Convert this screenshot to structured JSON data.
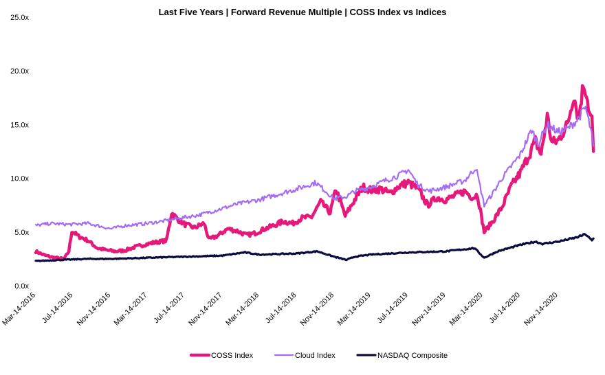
{
  "chart_data": {
    "type": "line",
    "title": "Last Five Years | Forward Revenue Multiple | COSS Index vs Indices",
    "xlabel": "",
    "ylabel": "",
    "ylim": [
      0,
      25
    ],
    "y_ticks": [
      "0.0x",
      "5.0x",
      "10.0x",
      "15.0x",
      "20.0x",
      "25.0x"
    ],
    "x_ticks": [
      "Mar-14-2016",
      "Jul-14-2016",
      "Nov-14-2016",
      "Mar-14-2017",
      "Jul-14-2017",
      "Nov-14-2017",
      "Mar-14-2018",
      "Jul-14-2018",
      "Nov-14-2018",
      "Mar-14-2019",
      "Jul-14-2019",
      "Nov-14-2019",
      "Mar-14-2020",
      "Jul-14-2020",
      "Nov-14-2020"
    ],
    "x_range": [
      "2016-03-14",
      "2021-03-14"
    ],
    "grid": false,
    "legend_position": "bottom",
    "series": [
      {
        "name": "COSS Index",
        "color": "#e5197a",
        "points": [
          [
            "2016-03-14",
            3.2
          ],
          [
            "2016-04-15",
            2.8
          ],
          [
            "2016-05-15",
            2.6
          ],
          [
            "2016-06-15",
            2.5
          ],
          [
            "2016-06-30",
            3.2
          ],
          [
            "2016-07-10",
            5.1
          ],
          [
            "2016-08-01",
            4.6
          ],
          [
            "2016-09-01",
            4.2
          ],
          [
            "2016-10-01",
            3.5
          ],
          [
            "2016-11-01",
            3.3
          ],
          [
            "2016-12-01",
            3.2
          ],
          [
            "2017-01-01",
            3.3
          ],
          [
            "2017-02-01",
            3.6
          ],
          [
            "2017-03-01",
            3.8
          ],
          [
            "2017-04-01",
            4.0
          ],
          [
            "2017-05-15",
            4.2
          ],
          [
            "2017-06-01",
            6.8
          ],
          [
            "2017-06-20",
            6.2
          ],
          [
            "2017-07-15",
            5.7
          ],
          [
            "2017-08-15",
            5.4
          ],
          [
            "2017-09-15",
            5.8
          ],
          [
            "2017-10-01",
            4.3
          ],
          [
            "2017-11-01",
            4.7
          ],
          [
            "2017-12-01",
            5.3
          ],
          [
            "2018-01-01",
            5.1
          ],
          [
            "2018-02-01",
            4.7
          ],
          [
            "2018-03-01",
            4.9
          ],
          [
            "2018-04-01",
            5.3
          ],
          [
            "2018-05-01",
            5.6
          ],
          [
            "2018-06-01",
            6.0
          ],
          [
            "2018-07-01",
            5.8
          ],
          [
            "2018-08-01",
            6.3
          ],
          [
            "2018-09-01",
            6.4
          ],
          [
            "2018-10-01",
            7.8
          ],
          [
            "2018-11-01",
            6.8
          ],
          [
            "2018-11-20",
            9.0
          ],
          [
            "2018-12-20",
            6.5
          ],
          [
            "2019-01-20",
            8.0
          ],
          [
            "2019-02-15",
            9.2
          ],
          [
            "2019-03-15",
            8.9
          ],
          [
            "2019-04-15",
            9.0
          ],
          [
            "2019-05-15",
            8.6
          ],
          [
            "2019-06-15",
            9.3
          ],
          [
            "2019-07-14",
            9.6
          ],
          [
            "2019-08-15",
            9.0
          ],
          [
            "2019-09-15",
            7.5
          ],
          [
            "2019-10-15",
            8.2
          ],
          [
            "2019-11-14",
            8.0
          ],
          [
            "2019-12-15",
            8.4
          ],
          [
            "2020-01-15",
            8.8
          ],
          [
            "2020-02-10",
            8.2
          ],
          [
            "2020-02-25",
            8.5
          ],
          [
            "2020-03-18",
            5.0
          ],
          [
            "2020-04-15",
            6.0
          ],
          [
            "2020-05-15",
            7.3
          ],
          [
            "2020-06-15",
            9.3
          ],
          [
            "2020-07-14",
            10.5
          ],
          [
            "2020-08-15",
            12.4
          ],
          [
            "2020-09-01",
            13.5
          ],
          [
            "2020-09-20",
            12.2
          ],
          [
            "2020-10-10",
            15.8
          ],
          [
            "2020-10-25",
            13.3
          ],
          [
            "2020-11-14",
            13.5
          ],
          [
            "2020-12-15",
            15.0
          ],
          [
            "2021-01-05",
            17.8
          ],
          [
            "2021-01-20",
            15.5
          ],
          [
            "2021-02-05",
            18.8
          ],
          [
            "2021-02-15",
            18.0
          ],
          [
            "2021-02-25",
            16.0
          ],
          [
            "2021-03-05",
            15.5
          ],
          [
            "2021-03-10",
            12.5
          ]
        ]
      },
      {
        "name": "Cloud Index",
        "color": "#a46cf5",
        "points": [
          [
            "2016-03-14",
            5.6
          ],
          [
            "2016-05-01",
            5.8
          ],
          [
            "2016-07-01",
            5.7
          ],
          [
            "2016-09-01",
            5.8
          ],
          [
            "2016-11-14",
            5.3
          ],
          [
            "2017-01-01",
            5.6
          ],
          [
            "2017-03-14",
            5.8
          ],
          [
            "2017-05-01",
            6.0
          ],
          [
            "2017-07-01",
            6.3
          ],
          [
            "2017-09-01",
            6.6
          ],
          [
            "2017-11-14",
            7.2
          ],
          [
            "2018-01-01",
            7.6
          ],
          [
            "2018-03-14",
            8.0
          ],
          [
            "2018-05-01",
            8.4
          ],
          [
            "2018-07-14",
            9.0
          ],
          [
            "2018-09-15",
            9.6
          ],
          [
            "2018-10-25",
            8.6
          ],
          [
            "2018-11-14",
            8.1
          ],
          [
            "2018-12-24",
            8.3
          ],
          [
            "2019-01-20",
            8.8
          ],
          [
            "2019-03-14",
            9.2
          ],
          [
            "2019-05-01",
            9.8
          ],
          [
            "2019-06-15",
            10.3
          ],
          [
            "2019-07-14",
            10.8
          ],
          [
            "2019-08-15",
            9.4
          ],
          [
            "2019-09-20",
            8.8
          ],
          [
            "2019-11-14",
            9.2
          ],
          [
            "2020-01-15",
            9.8
          ],
          [
            "2020-02-20",
            11.0
          ],
          [
            "2020-03-18",
            7.5
          ],
          [
            "2020-04-15",
            8.6
          ],
          [
            "2020-05-15",
            10.0
          ],
          [
            "2020-07-14",
            12.2
          ],
          [
            "2020-08-20",
            14.5
          ],
          [
            "2020-09-10",
            13.2
          ],
          [
            "2020-10-10",
            15.0
          ],
          [
            "2020-11-14",
            14.3
          ],
          [
            "2020-12-15",
            14.6
          ],
          [
            "2021-01-15",
            15.4
          ],
          [
            "2021-02-12",
            16.6
          ],
          [
            "2021-03-01",
            14.5
          ],
          [
            "2021-03-10",
            13.0
          ]
        ]
      },
      {
        "name": "NASDAQ Composite",
        "color": "#0d0c3e",
        "points": [
          [
            "2016-03-14",
            2.3
          ],
          [
            "2016-06-01",
            2.4
          ],
          [
            "2016-09-01",
            2.5
          ],
          [
            "2016-11-14",
            2.5
          ],
          [
            "2017-03-14",
            2.6
          ],
          [
            "2017-07-14",
            2.7
          ],
          [
            "2017-11-14",
            2.8
          ],
          [
            "2018-01-25",
            3.1
          ],
          [
            "2018-03-14",
            2.9
          ],
          [
            "2018-07-14",
            3.0
          ],
          [
            "2018-09-20",
            3.2
          ],
          [
            "2018-11-14",
            2.7
          ],
          [
            "2018-12-24",
            2.4
          ],
          [
            "2019-01-20",
            2.7
          ],
          [
            "2019-03-14",
            2.9
          ],
          [
            "2019-07-14",
            3.1
          ],
          [
            "2019-11-14",
            3.2
          ],
          [
            "2020-02-15",
            3.5
          ],
          [
            "2020-03-18",
            2.6
          ],
          [
            "2020-05-01",
            3.2
          ],
          [
            "2020-07-14",
            3.8
          ],
          [
            "2020-09-01",
            4.1
          ],
          [
            "2020-09-25",
            3.9
          ],
          [
            "2020-11-14",
            4.1
          ],
          [
            "2021-01-15",
            4.5
          ],
          [
            "2021-02-12",
            4.8
          ],
          [
            "2021-03-05",
            4.2
          ],
          [
            "2021-03-10",
            4.4
          ]
        ]
      }
    ]
  }
}
